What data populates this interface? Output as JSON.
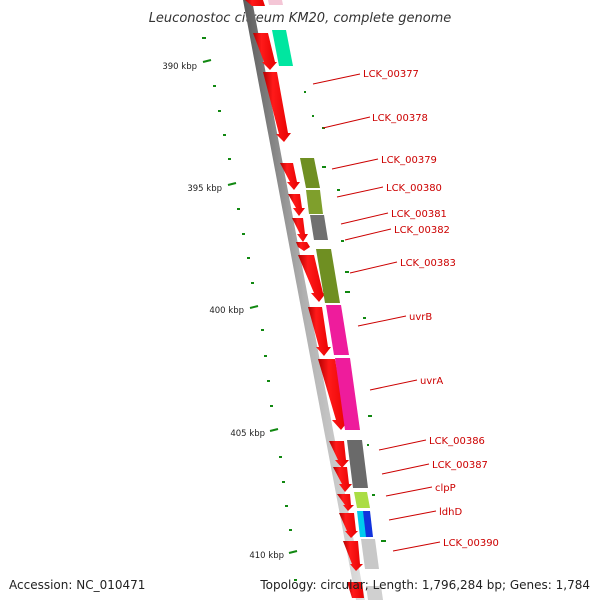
{
  "title": "Leuconostoc citreum KM20, complete genome",
  "accession": "Accession: NC_010471",
  "stats": "Topology: circular; Length: 1,796,284 bp; Genes: 1,784",
  "kbp_labels": [
    "390 kbp",
    "395 kbp",
    "400 kbp",
    "405 kbp",
    "410 kbp"
  ],
  "gene_labels": [
    "LCK_00377",
    "LCK_00378",
    "LCK_00379",
    "LCK_00380",
    "LCK_00381",
    "LCK_00382",
    "LCK_00383",
    "uvrB",
    "uvrA",
    "LCK_00386",
    "LCK_00387",
    "clpP",
    "ldhD",
    "LCK_00390"
  ],
  "colors": {
    "cds": "#ff0000",
    "label": "#cc0000",
    "tick": "#118811",
    "backbone": "#9a9a9a",
    "olive": "#6f8f22",
    "magenta": "#ee1c9c",
    "gray": "#707070",
    "light_gray": "#c8c8c8",
    "teal": "#00e6a0",
    "yellow_green": "#aadd44",
    "cyan": "#00ccee",
    "blue": "#1133dd"
  }
}
